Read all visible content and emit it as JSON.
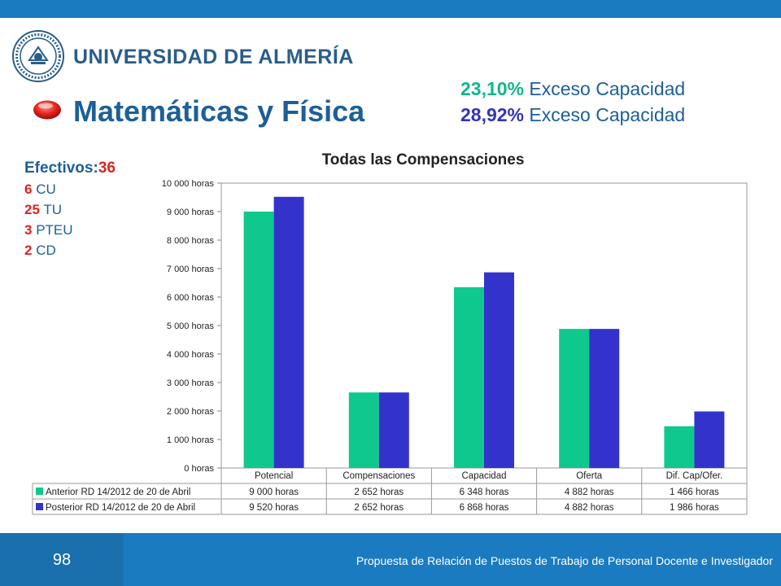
{
  "header": {
    "university_name": "UNIVERSIDAD DE ALMERÍA",
    "logo_icon": "university-seal-icon",
    "title": "Matemáticas y Física",
    "bullet_icon": "red-oval-bullet-icon"
  },
  "excess": [
    {
      "pct": "23,10%",
      "label": " Exceso Capacidad",
      "color": "#0fb88d"
    },
    {
      "pct": "28,92%",
      "label": " Exceso Capacidad",
      "color": "#3333bb"
    }
  ],
  "staff": {
    "heading": "Efectivos:",
    "total": "36",
    "items": [
      {
        "count": "6",
        "label": " CU"
      },
      {
        "count": "25",
        "label": " TU"
      },
      {
        "count": "3",
        "label": " PTEU"
      },
      {
        "count": "2",
        "label": " CD"
      }
    ]
  },
  "chart_data": {
    "type": "bar",
    "title": "Todas las Compensaciones",
    "categories": [
      "Potencial",
      "Compensaciones",
      "Capacidad",
      "Oferta",
      "Dif. Cap/Ofer."
    ],
    "series": [
      {
        "name": "Anterior RD 14/2012 de 20 de Abril",
        "color": "#0fc88e",
        "values": [
          9000,
          2652,
          6348,
          4882,
          1466
        ],
        "labels": [
          "9 000 horas",
          "2 652 horas",
          "6 348 horas",
          "4 882 horas",
          "1 466 horas"
        ]
      },
      {
        "name": "Posterior RD 14/2012 de 20 de Abril",
        "color": "#3333cc",
        "values": [
          9520,
          2652,
          6868,
          4882,
          1986
        ],
        "labels": [
          "9 520 horas",
          "2 652 horas",
          "6 868 horas",
          "4 882 horas",
          "1 986 horas"
        ]
      }
    ],
    "ylim": [
      0,
      10000
    ],
    "yticks": [
      0,
      1000,
      2000,
      3000,
      4000,
      5000,
      6000,
      7000,
      8000,
      9000,
      10000
    ],
    "ytick_labels": [
      "0 horas",
      "1 000 horas",
      "2 000 horas",
      "3 000 horas",
      "4 000 horas",
      "5 000 horas",
      "6 000 horas",
      "7 000 horas",
      "8 000 horas",
      "9 000 horas",
      "10 000 horas"
    ],
    "grid": false,
    "legend": "data-table"
  },
  "footer": {
    "page_number": "98",
    "text": "Propuesta de Relación de Puestos de Trabajo de Personal Docente e Investigador"
  }
}
